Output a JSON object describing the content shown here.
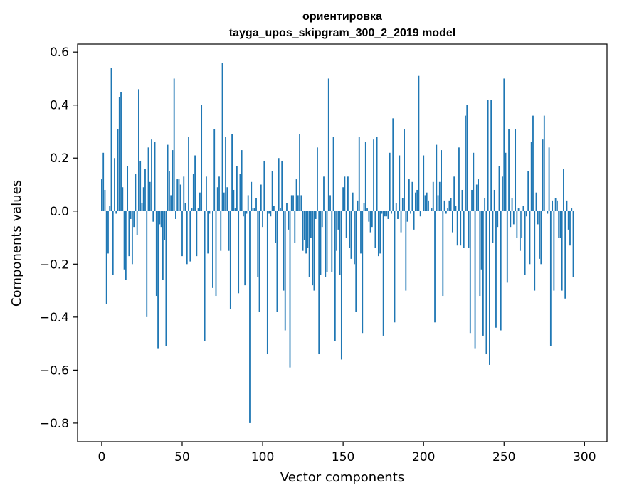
{
  "chart_data": {
    "type": "bar",
    "title_line1": "ориентировка",
    "title_line2": "tayga_upos_skipgram_300_2_2019 model",
    "xlabel": "Vector components",
    "ylabel": "Components values",
    "xlim": [
      -15,
      314
    ],
    "ylim": [
      -0.87,
      0.63
    ],
    "xticks": [
      0,
      50,
      100,
      150,
      200,
      250,
      300
    ],
    "yticks": [
      -0.8,
      -0.6,
      -0.4,
      -0.2,
      0.0,
      0.2,
      0.4,
      0.6
    ],
    "ytick_labels": [
      "−0.8",
      "−0.6",
      "−0.4",
      "−0.2",
      "0.0",
      "0.2",
      "0.4",
      "0.6"
    ],
    "bar_color": "#1f77b4",
    "grid": false,
    "values": [
      0.12,
      0.22,
      0.08,
      -0.35,
      -0.16,
      0.02,
      0.54,
      -0.24,
      0.2,
      -0.01,
      0.31,
      0.43,
      0.45,
      0.09,
      -0.22,
      -0.26,
      0.17,
      -0.17,
      -0.03,
      -0.2,
      -0.06,
      0.14,
      -0.09,
      0.46,
      0.19,
      0.03,
      0.09,
      0.16,
      -0.4,
      0.24,
      0.11,
      0.27,
      -0.04,
      0.26,
      -0.32,
      -0.52,
      -0.05,
      -0.06,
      -0.26,
      -0.11,
      -0.51,
      0.25,
      0.15,
      0.06,
      0.23,
      0.5,
      -0.03,
      0.12,
      0.12,
      0.1,
      -0.17,
      0.13,
      0.03,
      -0.2,
      0.28,
      -0.19,
      0.01,
      0.14,
      0.21,
      -0.17,
      0.01,
      0.07,
      0.4,
      0.0,
      -0.49,
      0.13,
      -0.16,
      -0.01,
      0.0,
      -0.29,
      0.31,
      -0.32,
      0.09,
      0.13,
      -0.15,
      0.56,
      0.07,
      0.28,
      0.09,
      -0.15,
      -0.37,
      0.29,
      0.08,
      0.01,
      0.17,
      -0.31,
      0.14,
      0.23,
      -0.02,
      -0.28,
      -0.01,
      0.06,
      -0.8,
      0.11,
      0.01,
      0.01,
      0.05,
      -0.25,
      -0.38,
      0.1,
      -0.06,
      0.19,
      0.0,
      -0.54,
      -0.01,
      -0.02,
      0.15,
      0.02,
      -0.12,
      -0.38,
      0.2,
      0.01,
      0.19,
      -0.3,
      -0.45,
      0.03,
      -0.07,
      -0.59,
      0.06,
      0.06,
      -0.12,
      0.12,
      0.06,
      0.29,
      0.06,
      -0.15,
      -0.11,
      -0.16,
      -0.14,
      -0.25,
      -0.1,
      -0.28,
      -0.3,
      -0.03,
      0.24,
      -0.54,
      -0.24,
      -0.06,
      0.13,
      -0.25,
      -0.23,
      0.5,
      0.06,
      -0.23,
      0.28,
      -0.49,
      -0.15,
      -0.07,
      -0.24,
      -0.56,
      0.09,
      0.13,
      -0.1,
      0.13,
      -0.14,
      -0.18,
      0.07,
      -0.2,
      -0.38,
      0.04,
      0.28,
      -0.16,
      -0.46,
      0.03,
      0.26,
      0.01,
      -0.04,
      -0.08,
      -0.06,
      0.27,
      -0.14,
      0.28,
      -0.17,
      -0.16,
      -0.01,
      -0.47,
      -0.02,
      -0.02,
      -0.03,
      0.22,
      -0.01,
      0.35,
      -0.42,
      0.03,
      -0.03,
      0.21,
      -0.08,
      0.05,
      0.31,
      -0.3,
      -0.04,
      0.12,
      -0.01,
      0.11,
      -0.07,
      0.07,
      0.08,
      0.51,
      -0.02,
      0.0,
      0.21,
      0.06,
      0.07,
      0.04,
      0.0,
      0.01,
      0.11,
      -0.42,
      0.25,
      0.06,
      0.11,
      0.23,
      -0.32,
      0.04,
      -0.01,
      0.01,
      0.04,
      0.05,
      -0.08,
      0.13,
      0.02,
      -0.13,
      0.24,
      -0.13,
      0.08,
      -0.14,
      0.36,
      0.4,
      -0.14,
      -0.46,
      0.08,
      0.22,
      -0.52,
      0.1,
      0.12,
      -0.32,
      -0.22,
      -0.47,
      0.05,
      -0.54,
      0.42,
      -0.58,
      0.42,
      -0.12,
      0.08,
      -0.44,
      -0.06,
      0.17,
      -0.45,
      0.13,
      0.5,
      0.22,
      -0.27,
      0.31,
      -0.06,
      0.05,
      -0.05,
      0.31,
      -0.1,
      0.01,
      -0.15,
      -0.1,
      0.02,
      -0.24,
      -0.02,
      0.15,
      -0.2,
      0.26,
      0.36,
      -0.3,
      0.07,
      -0.05,
      -0.18,
      -0.2,
      0.27,
      0.36,
      0.0,
      -0.01,
      0.24,
      -0.51,
      0.04,
      -0.3,
      0.05,
      0.04,
      -0.1,
      -0.1,
      -0.3,
      0.16,
      -0.33,
      0.04,
      -0.07,
      -0.13,
      0.01,
      -0.25
    ]
  }
}
